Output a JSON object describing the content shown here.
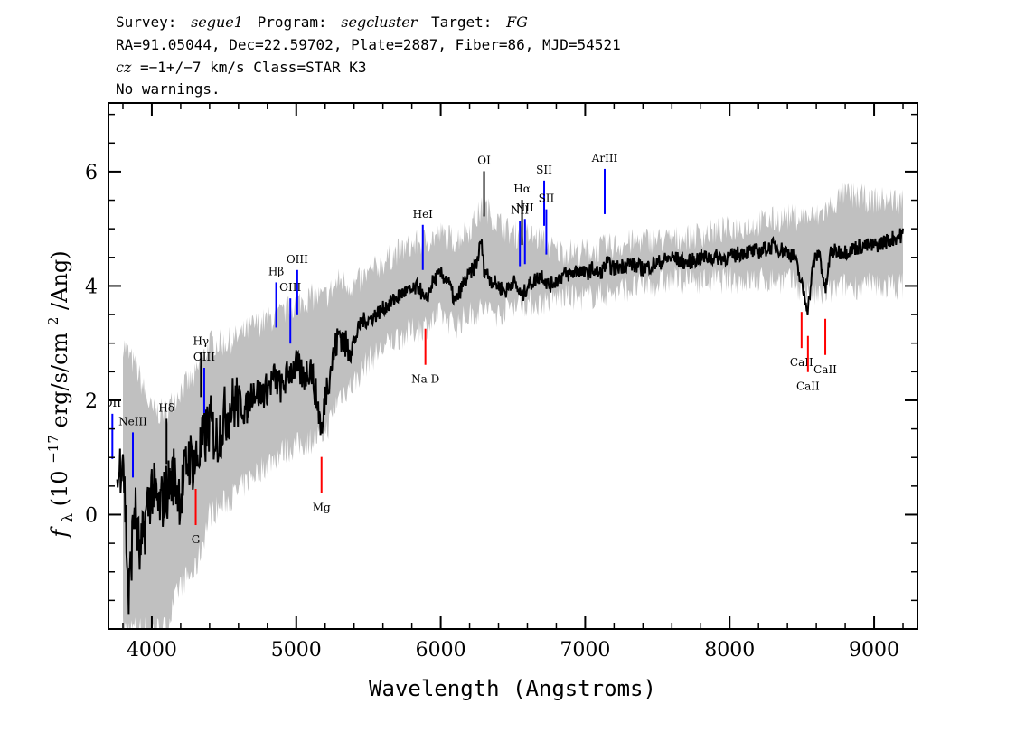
{
  "header": {
    "line1": {
      "survey_label": "Survey:",
      "survey": "segue1",
      "program_label": "Program:",
      "program": "segcluster",
      "target_label": "Target:",
      "target": "FG"
    },
    "line2": "RA=91.05044, Dec=22.59702, Plate=2887, Fiber=86, MJD=54521",
    "line3": {
      "cz_symbol": "cz",
      "cz_value": "=−1+/−7",
      "rest": " km/s Class=STAR K3"
    },
    "line4": "No warnings."
  },
  "chart_data": {
    "type": "line",
    "xlabel": "Wavelength (Angstroms)",
    "ylabel": {
      "f_symbol": "f",
      "lambda_sub": "λ",
      "open": " (10",
      "exp": "−17",
      "mid": " erg/s/cm",
      "sq": "2",
      "close": "/Ang)"
    },
    "xlim": [
      3700,
      9300
    ],
    "ylim": [
      -2.0,
      7.2
    ],
    "x_ticks": [
      4000,
      5000,
      6000,
      7000,
      8000,
      9000
    ],
    "x_tick_labels": [
      "4000",
      "5000",
      "6000",
      "7000",
      "8000",
      "9000"
    ],
    "y_ticks": [
      0,
      2,
      4,
      6
    ],
    "y_tick_labels": [
      "0",
      "2",
      "4",
      "6"
    ],
    "series": [
      {
        "role": "error",
        "color": "#c0c0c0",
        "x": [
          3800,
          3900,
          4000,
          4100,
          4200,
          4300,
          4400,
          4500,
          4600,
          4700,
          4800,
          4900,
          5000,
          5100,
          5200,
          5300,
          5400,
          5500,
          5600,
          5700,
          5800,
          5900,
          6000,
          6100,
          6200,
          6300,
          6400,
          6500,
          6600,
          6700,
          6800,
          6900,
          7000,
          7200,
          7400,
          7600,
          7800,
          8000,
          8200,
          8400,
          8600,
          8800,
          9000,
          9200
        ],
        "upper": [
          3.0,
          2.5,
          1.8,
          1.8,
          2.2,
          2.4,
          3.0,
          3.0,
          3.1,
          3.3,
          3.4,
          3.5,
          3.7,
          3.8,
          3.8,
          4.1,
          4.0,
          4.2,
          4.4,
          4.6,
          4.7,
          4.8,
          4.9,
          4.8,
          5.0,
          5.4,
          5.1,
          4.9,
          4.9,
          4.8,
          4.6,
          4.6,
          4.6,
          4.7,
          4.8,
          4.8,
          4.9,
          5.0,
          5.1,
          5.2,
          5.2,
          5.6,
          5.5,
          5.5
        ],
        "lower": [
          -2.0,
          -2.0,
          -2.0,
          -2.0,
          -1.2,
          -1.0,
          0.0,
          0.2,
          0.4,
          0.7,
          0.9,
          1.1,
          1.2,
          1.3,
          1.4,
          2.1,
          2.3,
          2.7,
          2.9,
          3.1,
          3.2,
          3.3,
          3.5,
          3.3,
          3.5,
          3.6,
          3.5,
          3.7,
          3.7,
          3.7,
          3.8,
          3.8,
          3.8,
          3.9,
          4.0,
          4.1,
          4.1,
          4.1,
          4.1,
          4.1,
          3.8,
          4.0,
          4.0,
          4.0
        ]
      },
      {
        "role": "flux",
        "color": "#000000",
        "x": [
          3760,
          3800,
          3840,
          3880,
          3920,
          3960,
          4000,
          4050,
          4100,
          4150,
          4200,
          4250,
          4300,
          4350,
          4400,
          4450,
          4500,
          4550,
          4600,
          4650,
          4700,
          4750,
          4800,
          4850,
          4900,
          4950,
          5000,
          5050,
          5100,
          5150,
          5180,
          5200,
          5250,
          5300,
          5350,
          5400,
          5450,
          5500,
          5550,
          5600,
          5650,
          5700,
          5750,
          5800,
          5850,
          5890,
          5950,
          6000,
          6050,
          6100,
          6150,
          6200,
          6250,
          6280,
          6300,
          6350,
          6400,
          6450,
          6500,
          6563,
          6600,
          6650,
          6700,
          6750,
          6800,
          6850,
          6900,
          6950,
          7000,
          7050,
          7100,
          7150,
          7200,
          7300,
          7400,
          7500,
          7600,
          7700,
          7800,
          7900,
          8000,
          8100,
          8200,
          8300,
          8400,
          8450,
          8500,
          8542,
          8580,
          8620,
          8662,
          8700,
          8800,
          8900,
          9000,
          9100,
          9200
        ],
        "y": [
          0.5,
          1.2,
          -1.5,
          0.2,
          -0.8,
          0.0,
          0.5,
          0.1,
          0.4,
          0.7,
          0.3,
          1.0,
          0.9,
          1.2,
          1.6,
          1.3,
          1.7,
          1.9,
          2.0,
          1.8,
          2.2,
          2.1,
          2.2,
          2.4,
          2.2,
          2.5,
          2.6,
          2.4,
          2.6,
          1.9,
          1.4,
          2.1,
          2.7,
          3.2,
          2.9,
          3.0,
          3.4,
          3.4,
          3.5,
          3.6,
          3.7,
          3.8,
          3.9,
          3.9,
          4.0,
          3.7,
          4.1,
          4.2,
          4.1,
          3.7,
          4.0,
          4.2,
          4.4,
          4.8,
          4.3,
          4.1,
          4.0,
          3.9,
          4.1,
          3.8,
          4.0,
          4.1,
          4.2,
          4.0,
          4.1,
          4.2,
          4.2,
          4.3,
          4.2,
          4.3,
          4.2,
          4.4,
          4.3,
          4.4,
          4.3,
          4.4,
          4.5,
          4.4,
          4.5,
          4.5,
          4.5,
          4.6,
          4.6,
          4.7,
          4.6,
          4.5,
          4.0,
          3.6,
          4.4,
          4.6,
          3.9,
          4.6,
          4.6,
          4.7,
          4.7,
          4.8,
          4.9
        ]
      }
    ],
    "emission_lines": [
      {
        "name": "OII",
        "wave": 3727,
        "color": "#0000ff"
      },
      {
        "name": "NeIII",
        "wave": 3869,
        "color": "#0000ff"
      },
      {
        "name": "Hδ",
        "wave": 4102,
        "color": "#000000"
      },
      {
        "name": "Hγ",
        "wave": 4340,
        "color": "#000000"
      },
      {
        "name": "OIII",
        "wave": 4363,
        "color": "#0000ff"
      },
      {
        "name": "Hβ",
        "wave": 4861,
        "color": "#0000ff"
      },
      {
        "name": "OIII",
        "wave": 4959,
        "color": "#0000ff"
      },
      {
        "name": "OIII",
        "wave": 5007,
        "color": "#0000ff"
      },
      {
        "name": "HeI",
        "wave": 5876,
        "color": "#0000ff"
      },
      {
        "name": "OI",
        "wave": 6300,
        "color": "#000000"
      },
      {
        "name": "NII",
        "wave": 6548,
        "color": "#0000ff"
      },
      {
        "name": "Hα",
        "wave": 6563,
        "color": "#000000"
      },
      {
        "name": "NII",
        "wave": 6583,
        "color": "#0000ff"
      },
      {
        "name": "SII",
        "wave": 6716,
        "color": "#0000ff"
      },
      {
        "name": "SII",
        "wave": 6731,
        "color": "#0000ff"
      },
      {
        "name": "ArIII",
        "wave": 7135,
        "color": "#0000ff"
      }
    ],
    "absorption_lines": [
      {
        "name": "G",
        "wave": 4304,
        "color": "#ff0000"
      },
      {
        "name": "Mg",
        "wave": 5175,
        "color": "#ff0000"
      },
      {
        "name": "Na D",
        "wave": 5894,
        "color": "#ff0000"
      },
      {
        "name": "CaII",
        "wave": 8498,
        "color": "#ff0000"
      },
      {
        "name": "CaII",
        "wave": 8542,
        "color": "#ff0000"
      },
      {
        "name": "CaII",
        "wave": 8662,
        "color": "#ff0000"
      }
    ]
  }
}
